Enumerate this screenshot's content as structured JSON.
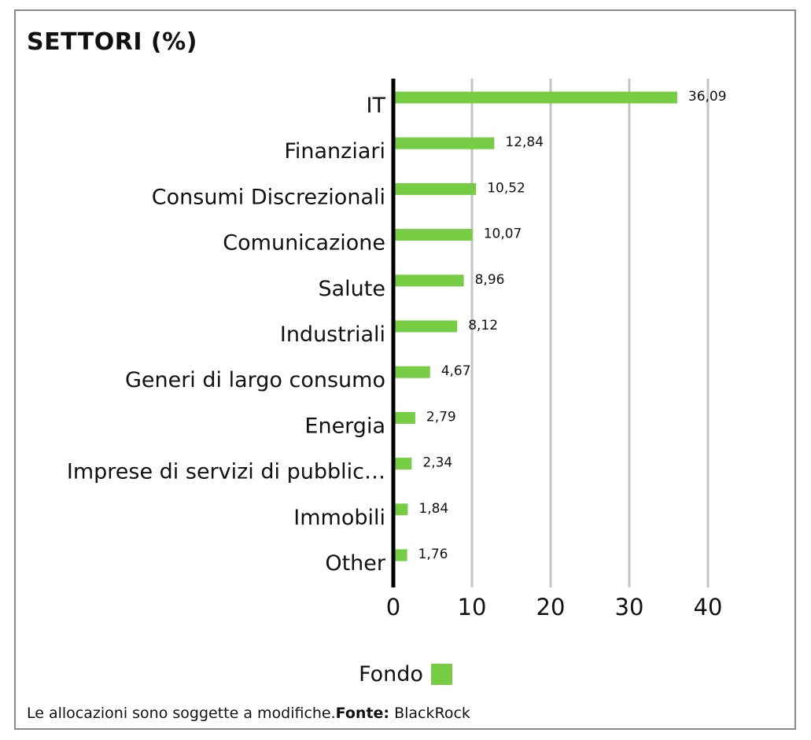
{
  "title": "SETTORI (%)",
  "colors": {
    "bar": "#76cc42",
    "axis": "#000000",
    "grid": "#c4c4c4",
    "frame": "#8a8a8a"
  },
  "chart_data": {
    "type": "bar",
    "orientation": "horizontal",
    "categories": [
      "IT",
      "Finanziari",
      "Consumi Discrezionali",
      "Comunicazione",
      "Salute",
      "Industriali",
      "Generi di largo consumo",
      "Energia",
      "Imprese di servizi di pubblic…",
      "Immobili",
      "Other"
    ],
    "series": [
      {
        "name": "Fondo",
        "values": [
          36.09,
          12.84,
          10.52,
          10.07,
          8.96,
          8.12,
          4.67,
          2.79,
          2.34,
          1.84,
          1.76
        ]
      }
    ],
    "value_labels": [
      "36,09",
      "12,84",
      "10,52",
      "10,07",
      "8,96",
      "8,12",
      "4,67",
      "2,79",
      "2,34",
      "1,84",
      "1,76"
    ],
    "xlim": [
      0,
      40
    ],
    "xticks": [
      "0",
      "10",
      "20",
      "30",
      "40"
    ],
    "grid": true,
    "legend_position": "bottom"
  },
  "legend": {
    "label": "Fondo"
  },
  "footer": {
    "note": "Le allocazioni sono soggette a modifiche.",
    "source_label": "Fonte:",
    "source": " BlackRock"
  }
}
